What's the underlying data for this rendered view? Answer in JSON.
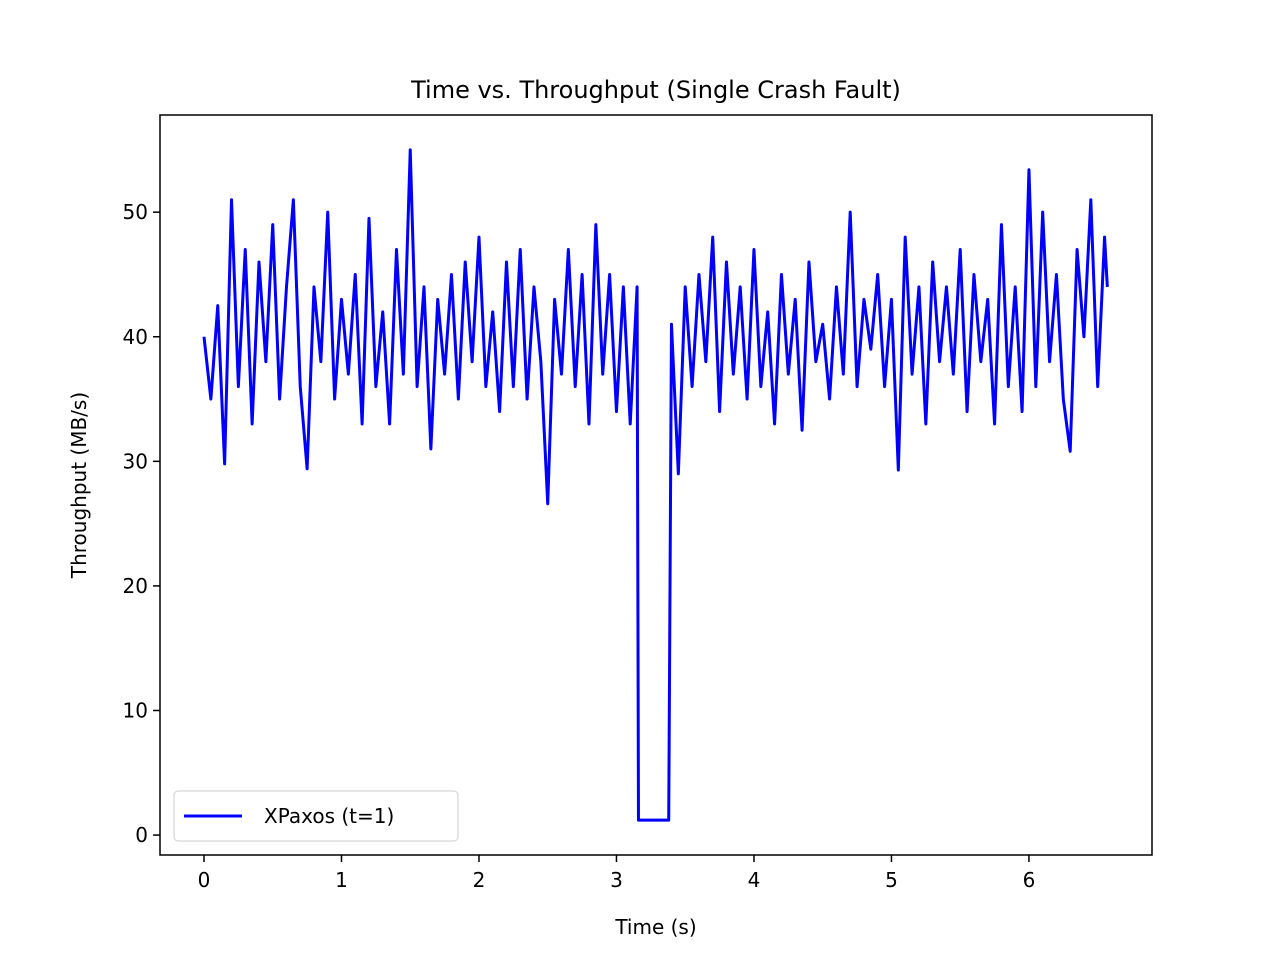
{
  "chart_data": {
    "type": "line",
    "title": "Time vs. Throughput (Single Crash Fault)",
    "x_label": "Time (s)",
    "y_label": "Throughput (MB/s)",
    "x": [
      0,
      0.05,
      0.1,
      0.15,
      0.2,
      0.25,
      0.3,
      0.35,
      0.4,
      0.45,
      0.5,
      0.55,
      0.6,
      0.65,
      0.7,
      0.75,
      0.8,
      0.85,
      0.9,
      0.95,
      1.0,
      1.05,
      1.1,
      1.15,
      1.2,
      1.25,
      1.3,
      1.35,
      1.4,
      1.45,
      1.5,
      1.55,
      1.6,
      1.65,
      1.7,
      1.75,
      1.8,
      1.85,
      1.9,
      1.95,
      2.0,
      2.05,
      2.1,
      2.15,
      2.2,
      2.25,
      2.3,
      2.35,
      2.4,
      2.45,
      2.5,
      2.55,
      2.6,
      2.65,
      2.7,
      2.75,
      2.8,
      2.85,
      2.9,
      2.95,
      3.0,
      3.05,
      3.1,
      3.15,
      3.16,
      3.38,
      3.4,
      3.45,
      3.5,
      3.55,
      3.6,
      3.65,
      3.7,
      3.75,
      3.8,
      3.85,
      3.9,
      3.95,
      4.0,
      4.05,
      4.1,
      4.15,
      4.2,
      4.25,
      4.3,
      4.35,
      4.4,
      4.45,
      4.5,
      4.55,
      4.6,
      4.65,
      4.7,
      4.75,
      4.8,
      4.85,
      4.9,
      4.95,
      5.0,
      5.05,
      5.1,
      5.15,
      5.2,
      5.25,
      5.3,
      5.35,
      5.4,
      5.45,
      5.5,
      5.55,
      5.6,
      5.65,
      5.7,
      5.75,
      5.8,
      5.85,
      5.9,
      5.95,
      6.0,
      6.05,
      6.1,
      6.15,
      6.2,
      6.25,
      6.3,
      6.35,
      6.4,
      6.45,
      6.5,
      6.55,
      6.57
    ],
    "series": [
      {
        "name": "XPaxos (t=1)",
        "color": "#0000ff",
        "values": [
          40,
          35,
          42.5,
          29.8,
          51,
          36,
          47,
          33,
          46,
          38,
          49,
          35,
          44,
          51,
          36,
          29.4,
          44,
          38,
          50,
          35,
          43,
          37,
          45,
          33,
          49.5,
          36,
          42,
          33,
          47,
          37,
          55,
          36,
          44,
          31,
          43,
          37,
          45,
          35,
          46,
          38,
          48,
          36,
          42,
          34,
          46,
          36,
          47,
          35,
          44,
          38,
          26.6,
          43,
          37,
          47,
          36,
          45,
          33,
          49,
          37,
          45,
          34,
          44,
          33,
          44,
          1.2,
          1.2,
          41,
          29,
          44,
          36,
          45,
          38,
          48,
          34,
          46,
          37,
          44,
          35,
          47,
          36,
          42,
          33,
          45,
          37,
          43,
          32.5,
          46,
          38,
          41,
          35,
          44,
          37,
          50,
          36,
          43,
          39,
          45,
          36,
          43,
          29.3,
          48,
          37,
          44,
          33,
          46,
          38,
          44,
          37,
          47,
          34,
          45,
          38,
          43,
          33,
          49,
          36,
          44,
          34,
          53.4,
          36,
          50,
          38,
          45,
          35,
          30.8,
          47,
          40,
          51,
          36,
          48,
          44
        ]
      }
    ],
    "xlim": [
      -0.32,
      6.895
    ],
    "ylim": [
      -1.6,
      57.8
    ],
    "xticks": [
      0,
      1,
      2,
      3,
      4,
      5,
      6
    ],
    "yticks": [
      0,
      10,
      20,
      30,
      40,
      50
    ],
    "legend": "lower left"
  }
}
